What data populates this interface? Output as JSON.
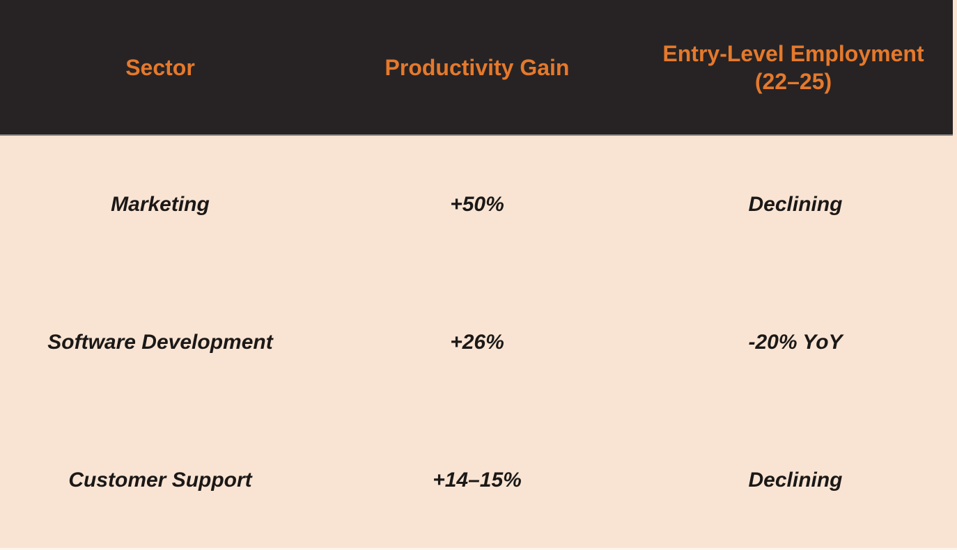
{
  "chart_data": {
    "type": "table",
    "columns": [
      "Sector",
      "Productivity Gain",
      "Entry-Level Employment (22–25)"
    ],
    "rows": [
      [
        "Marketing",
        "+50%",
        "Declining"
      ],
      [
        "Software Development",
        "+26%",
        "-20% YoY"
      ],
      [
        "Customer Support",
        "+14–15%",
        "Declining"
      ]
    ],
    "layout_hints": {
      "header_position": "top",
      "grid": "off",
      "body_text_style": "bold italic",
      "header_text_style": "bold"
    }
  },
  "colors": {
    "header_background": "#272324",
    "header_text": "#e5792c",
    "body_background": "#f9e4d3",
    "body_text": "#1b1817"
  }
}
